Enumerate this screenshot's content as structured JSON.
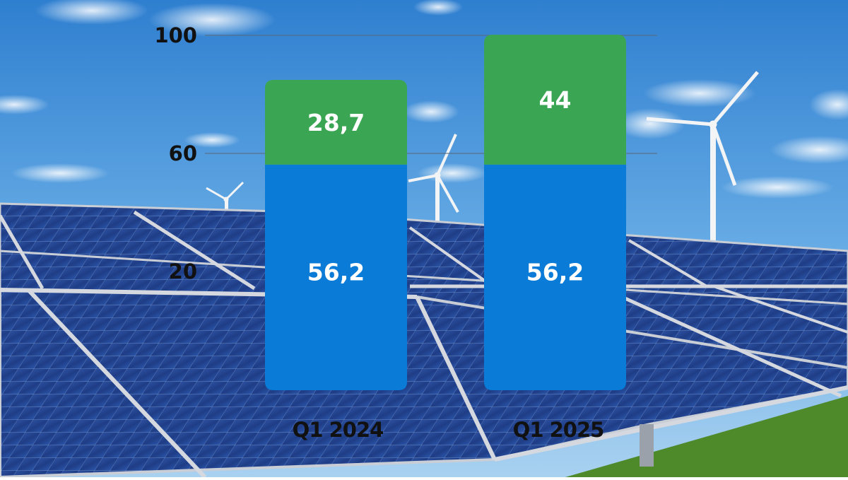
{
  "colors": {
    "sky_top": "#2f7fd0",
    "sky_bottom": "#9cc9ee",
    "panel": "#213f86",
    "panel_frame": "#c9ced6",
    "grass": "#4f8a2a",
    "series_bottom": "#0a7bd6",
    "series_top": "#3aa653"
  },
  "icons": [
    "wind-turbine-icon",
    "solar-panel-icon"
  ],
  "chart_data": {
    "type": "bar",
    "stacked": true,
    "categories": [
      "Q1 2024",
      "Q1 2025"
    ],
    "series": [
      {
        "values": [
          56.2,
          56.2
        ],
        "labels": [
          "56,2",
          "56,2"
        ],
        "color": "#0a7bd6"
      },
      {
        "values": [
          28.7,
          44
        ],
        "labels": [
          "28,7",
          "44"
        ],
        "color": "#3aa653"
      }
    ],
    "yticks": [
      20,
      60,
      100
    ],
    "ylim": [
      0,
      100
    ],
    "grid": true,
    "legend": "none",
    "title": "",
    "xlabel": "",
    "ylabel": ""
  }
}
